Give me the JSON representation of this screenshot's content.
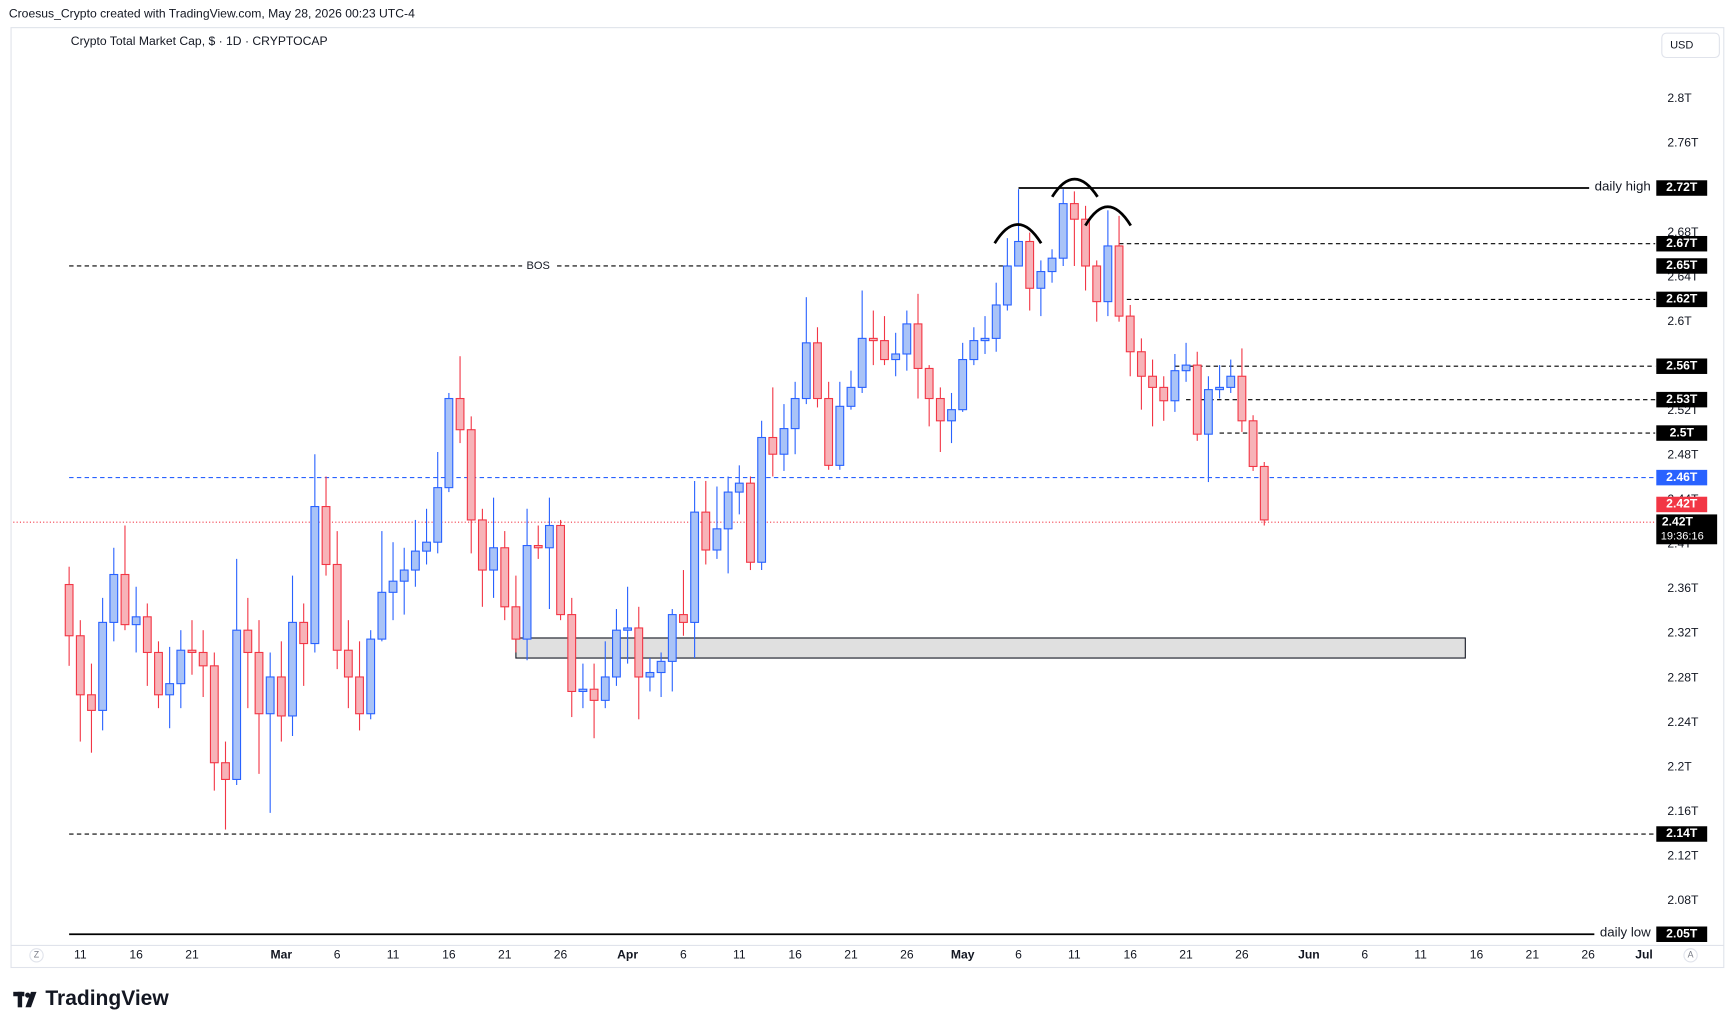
{
  "header": {
    "attribution": "Croesus_Crypto created with TradingView.com, May 28, 2026 00:23 UTC-4",
    "currency": "USD",
    "brand": "TradingView",
    "z_button": "Z",
    "a_button": "A"
  },
  "chart_data": {
    "type": "candlestick",
    "title": "Crypto Total Market Cap, $ · 1D · CRYPTOCAP",
    "up_color": "#2962ff",
    "up_fill": "#a9c3f7",
    "down_color": "#f23645",
    "down_fill": "#f7b3b8",
    "grid": false,
    "x": [
      "2026-02-10",
      "2026-02-11",
      "2026-02-12",
      "2026-02-13",
      "2026-02-14",
      "2026-02-15",
      "2026-02-16",
      "2026-02-17",
      "2026-02-18",
      "2026-02-19",
      "2026-02-20",
      "2026-02-21",
      "2026-02-22",
      "2026-02-23",
      "2026-02-24",
      "2026-02-25",
      "2026-02-26",
      "2026-02-27",
      "2026-02-28",
      "2026-03-01",
      "2026-03-02",
      "2026-03-03",
      "2026-03-04",
      "2026-03-05",
      "2026-03-06",
      "2026-03-07",
      "2026-03-08",
      "2026-03-09",
      "2026-03-10",
      "2026-03-11",
      "2026-03-12",
      "2026-03-13",
      "2026-03-14",
      "2026-03-15",
      "2026-03-16",
      "2026-03-17",
      "2026-03-18",
      "2026-03-19",
      "2026-03-20",
      "2026-03-21",
      "2026-03-22",
      "2026-03-23",
      "2026-03-24",
      "2026-03-25",
      "2026-03-26",
      "2026-03-27",
      "2026-03-28",
      "2026-03-29",
      "2026-03-30",
      "2026-03-31",
      "2026-04-01",
      "2026-04-02",
      "2026-04-03",
      "2026-04-04",
      "2026-04-05",
      "2026-04-06",
      "2026-04-07",
      "2026-04-08",
      "2026-04-09",
      "2026-04-10",
      "2026-04-11",
      "2026-04-12",
      "2026-04-13",
      "2026-04-14",
      "2026-04-15",
      "2026-04-16",
      "2026-04-17",
      "2026-04-18",
      "2026-04-19",
      "2026-04-20",
      "2026-04-21",
      "2026-04-22",
      "2026-04-23",
      "2026-04-24",
      "2026-04-25",
      "2026-04-26",
      "2026-04-27",
      "2026-04-28",
      "2026-04-29",
      "2026-04-30",
      "2026-05-01",
      "2026-05-02",
      "2026-05-03",
      "2026-05-04",
      "2026-05-05",
      "2026-05-06",
      "2026-05-07",
      "2026-05-08",
      "2026-05-09",
      "2026-05-10",
      "2026-05-11",
      "2026-05-12",
      "2026-05-13",
      "2026-05-14",
      "2026-05-15",
      "2026-05-16",
      "2026-05-17",
      "2026-05-18",
      "2026-05-19",
      "2026-05-20",
      "2026-05-21",
      "2026-05-22",
      "2026-05-23",
      "2026-05-24",
      "2026-05-25",
      "2026-05-26",
      "2026-05-27",
      "2026-05-28"
    ],
    "open": [
      2.364,
      2.318,
      2.265,
      2.251,
      2.33,
      2.373,
      2.328,
      2.335,
      2.303,
      2.265,
      2.275,
      2.305,
      2.303,
      2.291,
      2.204,
      2.189,
      2.323,
      2.303,
      2.248,
      2.281,
      2.246,
      2.33,
      2.311,
      2.434,
      2.382,
      2.305,
      2.281,
      2.248,
      2.315,
      2.357,
      2.367,
      2.377,
      2.394,
      2.402,
      2.451,
      2.531,
      2.503,
      2.422,
      2.377,
      2.397,
      2.344,
      2.315,
      2.399,
      2.397,
      2.417,
      2.337,
      2.268,
      2.27,
      2.26,
      2.281,
      2.323,
      2.325,
      2.281,
      2.285,
      2.295,
      2.337,
      2.33,
      2.429,
      2.395,
      2.414,
      2.447,
      2.455,
      2.384,
      2.496,
      2.481,
      2.504,
      2.531,
      2.581,
      2.531,
      2.471,
      2.524,
      2.541,
      2.585,
      2.583,
      2.566,
      2.571,
      2.598,
      2.558,
      2.531,
      2.511,
      2.521,
      2.566,
      2.583,
      2.585,
      2.615,
      2.65,
      2.672,
      2.63,
      2.645,
      2.657,
      2.706,
      2.692,
      2.65,
      2.618,
      2.668,
      2.605,
      2.573,
      2.551,
      2.541,
      2.529,
      2.556,
      2.561,
      2.499,
      2.539,
      2.541,
      2.551,
      2.511,
      2.47
    ],
    "high": [
      2.38,
      2.332,
      2.293,
      2.352,
      2.397,
      2.417,
      2.362,
      2.347,
      2.313,
      2.308,
      2.323,
      2.332,
      2.323,
      2.303,
      2.223,
      2.387,
      2.352,
      2.332,
      2.303,
      2.313,
      2.372,
      2.347,
      2.481,
      2.461,
      2.412,
      2.332,
      2.313,
      2.323,
      2.412,
      2.402,
      2.397,
      2.422,
      2.432,
      2.483,
      2.536,
      2.569,
      2.515,
      2.432,
      2.442,
      2.412,
      2.372,
      2.432,
      2.417,
      2.442,
      2.422,
      2.352,
      2.293,
      2.293,
      2.313,
      2.342,
      2.362,
      2.344,
      2.298,
      2.303,
      2.342,
      2.377,
      2.457,
      2.457,
      2.452,
      2.461,
      2.471,
      2.461,
      2.511,
      2.541,
      2.526,
      2.546,
      2.622,
      2.595,
      2.546,
      2.546,
      2.556,
      2.628,
      2.61,
      2.605,
      2.59,
      2.61,
      2.625,
      2.561,
      2.541,
      2.536,
      2.581,
      2.595,
      2.605,
      2.635,
      2.675,
      2.719,
      2.68,
      2.655,
      2.665,
      2.719,
      2.717,
      2.704,
      2.655,
      2.7,
      2.695,
      2.615,
      2.585,
      2.566,
      2.551,
      2.571,
      2.581,
      2.573,
      2.551,
      2.561,
      2.566,
      2.576,
      2.516,
      2.474
    ],
    "low": [
      2.291,
      2.223,
      2.213,
      2.233,
      2.313,
      2.323,
      2.303,
      2.273,
      2.253,
      2.235,
      2.253,
      2.283,
      2.263,
      2.179,
      2.144,
      2.184,
      2.253,
      2.194,
      2.159,
      2.223,
      2.228,
      2.273,
      2.303,
      2.372,
      2.288,
      2.253,
      2.233,
      2.243,
      2.313,
      2.332,
      2.337,
      2.362,
      2.382,
      2.392,
      2.447,
      2.491,
      2.392,
      2.344,
      2.352,
      2.332,
      2.303,
      2.296,
      2.387,
      2.342,
      2.332,
      2.245,
      2.253,
      2.226,
      2.253,
      2.273,
      2.293,
      2.243,
      2.268,
      2.263,
      2.268,
      2.318,
      2.298,
      2.382,
      2.387,
      2.374,
      2.427,
      2.377,
      2.377,
      2.461,
      2.466,
      2.481,
      2.526,
      2.523,
      2.467,
      2.467,
      2.521,
      2.536,
      2.561,
      2.561,
      2.551,
      2.556,
      2.531,
      2.506,
      2.483,
      2.491,
      2.519,
      2.561,
      2.571,
      2.573,
      2.61,
      2.65,
      2.61,
      2.605,
      2.635,
      2.65,
      2.65,
      2.628,
      2.6,
      2.605,
      2.6,
      2.551,
      2.521,
      2.506,
      2.511,
      2.519,
      2.546,
      2.493,
      2.456,
      2.531,
      2.536,
      2.501,
      2.466,
      2.417
    ],
    "close": [
      2.318,
      2.265,
      2.251,
      2.33,
      2.373,
      2.328,
      2.335,
      2.303,
      2.265,
      2.275,
      2.305,
      2.303,
      2.291,
      2.204,
      2.189,
      2.323,
      2.303,
      2.248,
      2.281,
      2.246,
      2.33,
      2.311,
      2.434,
      2.382,
      2.305,
      2.281,
      2.248,
      2.315,
      2.357,
      2.367,
      2.377,
      2.394,
      2.402,
      2.451,
      2.531,
      2.503,
      2.422,
      2.377,
      2.397,
      2.344,
      2.315,
      2.399,
      2.397,
      2.417,
      2.337,
      2.268,
      2.27,
      2.26,
      2.281,
      2.323,
      2.325,
      2.281,
      2.285,
      2.295,
      2.337,
      2.33,
      2.429,
      2.395,
      2.414,
      2.447,
      2.455,
      2.384,
      2.496,
      2.481,
      2.504,
      2.531,
      2.581,
      2.531,
      2.471,
      2.524,
      2.541,
      2.585,
      2.583,
      2.566,
      2.571,
      2.598,
      2.558,
      2.531,
      2.511,
      2.521,
      2.566,
      2.583,
      2.585,
      2.615,
      2.65,
      2.672,
      2.63,
      2.645,
      2.657,
      2.706,
      2.692,
      2.65,
      2.618,
      2.668,
      2.605,
      2.573,
      2.551,
      2.541,
      2.529,
      2.556,
      2.561,
      2.499,
      2.539,
      2.541,
      2.551,
      2.511,
      2.47,
      2.422
    ],
    "xlim": [
      "2026-02-05",
      "2026-07-02"
    ],
    "xticks": [
      {
        "value": "2026-02-11",
        "label": "11"
      },
      {
        "value": "2026-02-16",
        "label": "16"
      },
      {
        "value": "2026-02-21",
        "label": "21"
      },
      {
        "value": "2026-03-01",
        "label": "Mar"
      },
      {
        "value": "2026-03-06",
        "label": "6"
      },
      {
        "value": "2026-03-11",
        "label": "11"
      },
      {
        "value": "2026-03-16",
        "label": "16"
      },
      {
        "value": "2026-03-21",
        "label": "21"
      },
      {
        "value": "2026-03-26",
        "label": "26"
      },
      {
        "value": "2026-04-01",
        "label": "Apr"
      },
      {
        "value": "2026-04-06",
        "label": "6"
      },
      {
        "value": "2026-04-11",
        "label": "11"
      },
      {
        "value": "2026-04-16",
        "label": "16"
      },
      {
        "value": "2026-04-21",
        "label": "21"
      },
      {
        "value": "2026-04-26",
        "label": "26"
      },
      {
        "value": "2026-05-01",
        "label": "May"
      },
      {
        "value": "2026-05-06",
        "label": "6"
      },
      {
        "value": "2026-05-11",
        "label": "11"
      },
      {
        "value": "2026-05-16",
        "label": "16"
      },
      {
        "value": "2026-05-21",
        "label": "21"
      },
      {
        "value": "2026-05-26",
        "label": "26"
      },
      {
        "value": "2026-06-01",
        "label": "Jun"
      },
      {
        "value": "2026-06-06",
        "label": "6"
      },
      {
        "value": "2026-06-11",
        "label": "11"
      },
      {
        "value": "2026-06-16",
        "label": "16"
      },
      {
        "value": "2026-06-21",
        "label": "21"
      },
      {
        "value": "2026-06-26",
        "label": "26"
      },
      {
        "value": "2026-07-01",
        "label": "Jul"
      }
    ],
    "ylim": [
      2.04,
      2.864
    ],
    "yticks": [
      {
        "value": 2.08,
        "label": "2.08T"
      },
      {
        "value": 2.12,
        "label": "2.12T"
      },
      {
        "value": 2.16,
        "label": "2.16T"
      },
      {
        "value": 2.2,
        "label": "2.2T"
      },
      {
        "value": 2.24,
        "label": "2.24T"
      },
      {
        "value": 2.28,
        "label": "2.28T"
      },
      {
        "value": 2.32,
        "label": "2.32T"
      },
      {
        "value": 2.36,
        "label": "2.36T"
      },
      {
        "value": 2.4,
        "label": "2.4T"
      },
      {
        "value": 2.44,
        "label": "2.44T"
      },
      {
        "value": 2.48,
        "label": "2.48T"
      },
      {
        "value": 2.52,
        "label": "2.52T"
      },
      {
        "value": 2.56,
        "label": "2.56T"
      },
      {
        "value": 2.6,
        "label": "2.6T"
      },
      {
        "value": 2.64,
        "label": "2.64T"
      },
      {
        "value": 2.68,
        "label": "2.68T"
      },
      {
        "value": 2.72,
        "label": "2.72T"
      },
      {
        "value": 2.76,
        "label": "2.76T"
      },
      {
        "value": 2.8,
        "label": "2.8T"
      }
    ],
    "levels": [
      {
        "value": 2.72,
        "label": "2.72T",
        "note": "daily high",
        "note_position": "right",
        "style": "solid",
        "color": "#000000",
        "start": "2026-05-06"
      },
      {
        "value": 2.67,
        "label": "2.67T",
        "style": "dashed",
        "color": "#000000",
        "start": "2026-05-15"
      },
      {
        "value": 2.65,
        "label": "2.65T",
        "note": "BOS",
        "note_position": "middle",
        "style": "dashed",
        "color": "#000000",
        "start": "2026-02-10",
        "end": "2026-05-05"
      },
      {
        "value": 2.62,
        "label": "2.62T",
        "style": "dashed",
        "color": "#000000",
        "start": "2026-05-15"
      },
      {
        "value": 2.56,
        "label": "2.56T",
        "style": "dashed",
        "color": "#000000",
        "start": "2026-05-20"
      },
      {
        "value": 2.53,
        "label": "2.53T",
        "style": "dashed",
        "color": "#000000",
        "start": "2026-05-21"
      },
      {
        "value": 2.5,
        "label": "2.5T",
        "style": "dashed",
        "color": "#000000",
        "start": "2026-05-24"
      },
      {
        "value": 2.46,
        "label": "2.46T",
        "style": "dashed",
        "color": "#2962ff",
        "start": "2026-02-10"
      },
      {
        "value": 2.14,
        "label": "2.14T",
        "style": "dashed",
        "color": "#000000",
        "start": "2026-02-10"
      },
      {
        "value": 2.05,
        "label": "2.05T",
        "note": "daily low",
        "note_position": "right",
        "style": "solid",
        "color": "#000000",
        "start": "2026-02-10"
      }
    ],
    "zone": {
      "low": 2.298,
      "high": 2.316,
      "start": "2026-03-22",
      "end": "2026-06-15",
      "color": "#e0e0e0"
    },
    "last_price": {
      "value": 2.42,
      "label": "2.42T",
      "countdown": "19:36:16",
      "color": "#f23645"
    }
  }
}
